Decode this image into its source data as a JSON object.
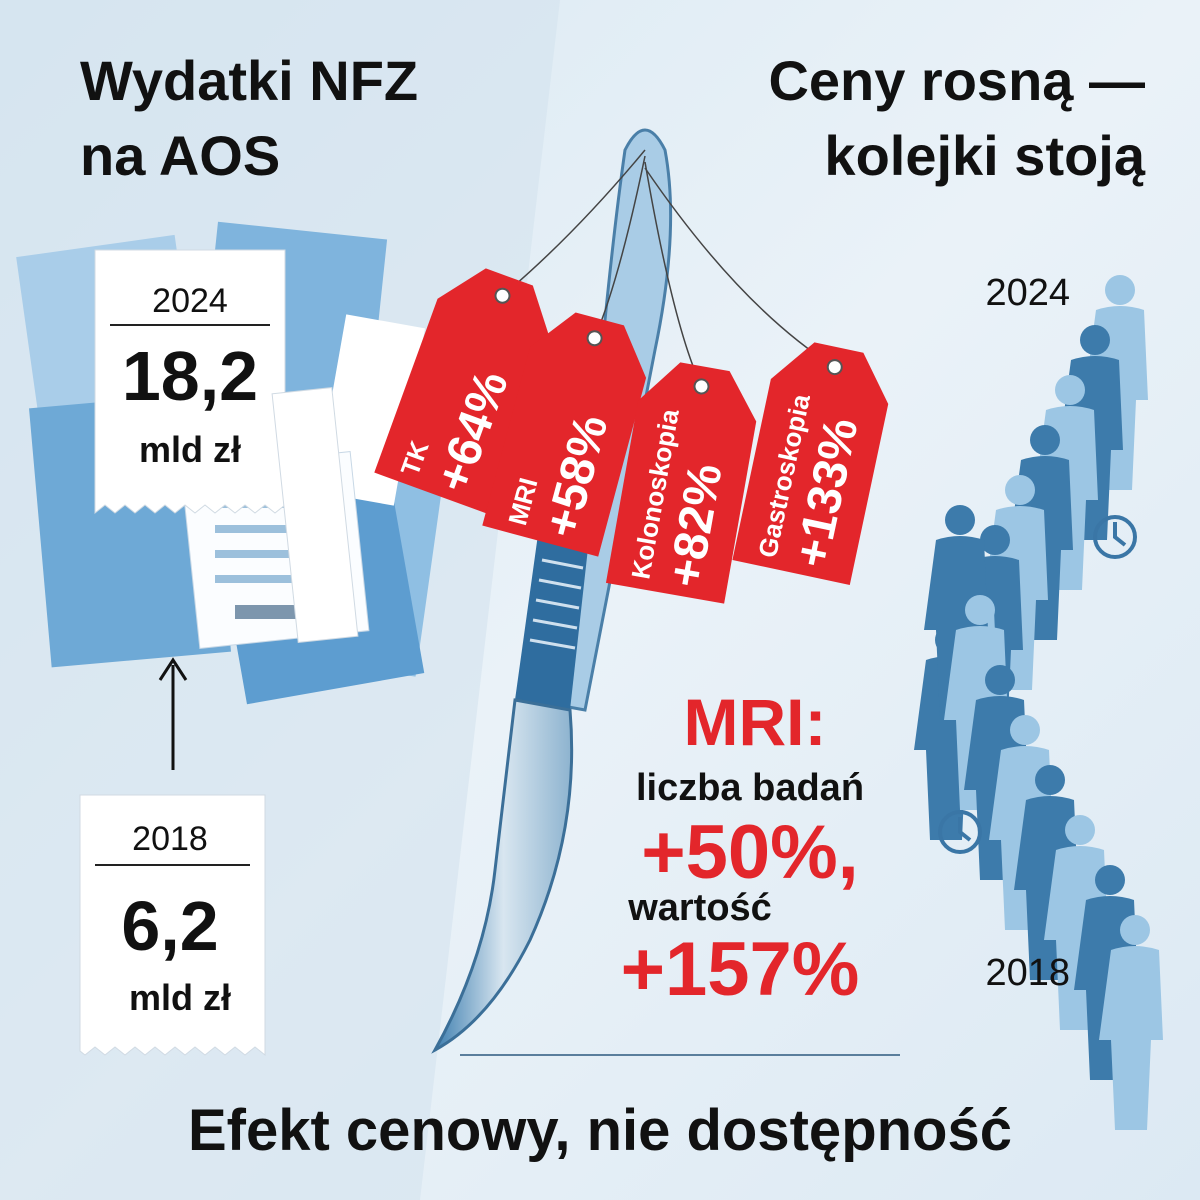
{
  "left": {
    "title": [
      "Wydatki NFZ",
      "na AOS"
    ],
    "receipts": [
      {
        "year": "2024",
        "amount": "18,2",
        "unit": "mld zł"
      },
      {
        "year": "2018",
        "amount": "6,2",
        "unit": "mld zł"
      }
    ]
  },
  "right": {
    "title": [
      "Ceny rosną —",
      "kolejki stoją"
    ],
    "tags": [
      {
        "name": "TK",
        "change": "+64%"
      },
      {
        "name": "MRI",
        "change": "+58%"
      },
      {
        "name": "Kolonoskopia",
        "change": "+82%"
      },
      {
        "name": "Gastroskopia",
        "change": "+133%"
      }
    ],
    "mri": {
      "heading": "MRI:",
      "count_label": "liczba badań",
      "count_change": "+50%,",
      "value_label": "wartość",
      "value_change": "+157%"
    },
    "queue_years": [
      "2024",
      "2018"
    ]
  },
  "footer": "Efekt cenowy, nie dostępność"
}
